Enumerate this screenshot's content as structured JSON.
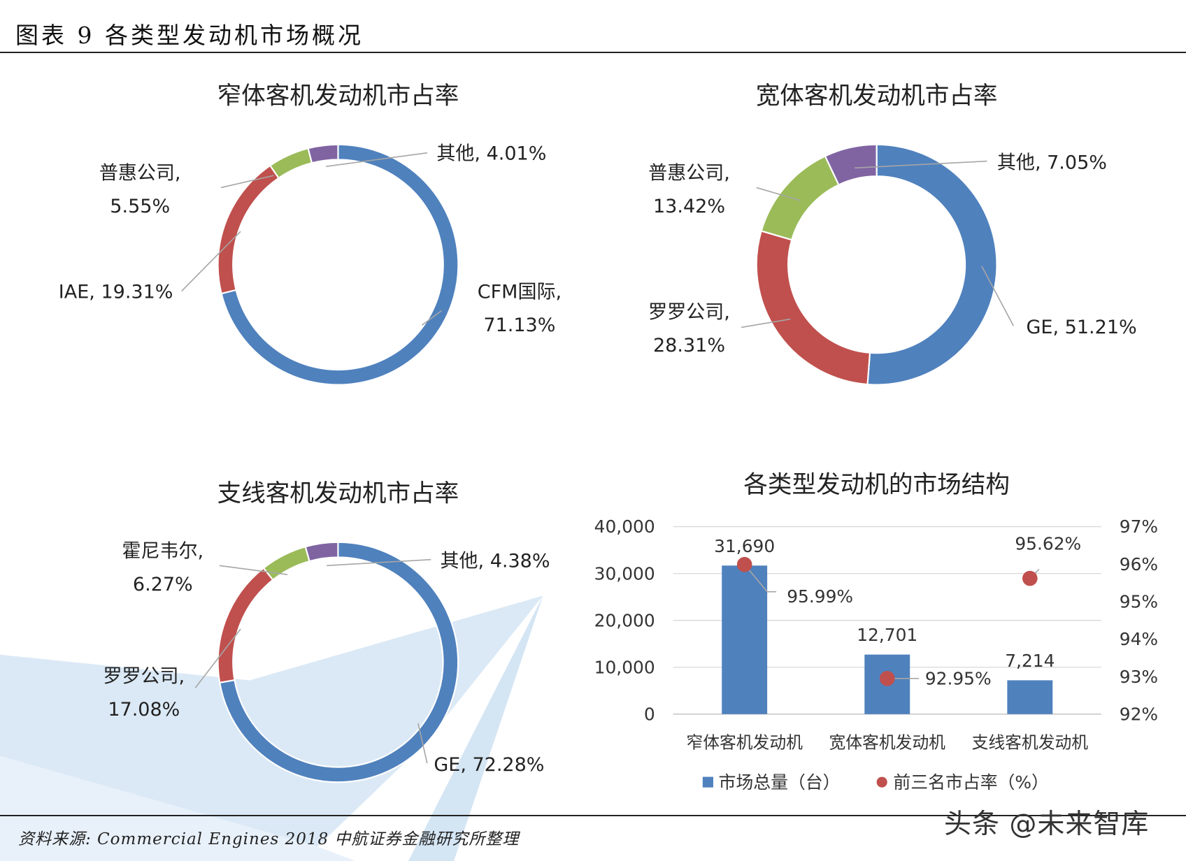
{
  "figure": {
    "title": "图表 9 各类型发动机市场概况",
    "source": "资料来源: Commercial Engines 2018 中航证券金融研究所整理",
    "attribution": "头条 @未来智库"
  },
  "colors": {
    "blue": "#4F81BD",
    "red": "#C0504D",
    "green": "#9BBB59",
    "purple": "#8064A2",
    "marker": "#C0504D",
    "watermark": "#BDD7EE"
  },
  "chart_data": [
    {
      "type": "pie",
      "variant": "doughnut",
      "title": "窄体客机发动机市占率",
      "slices": [
        {
          "label": "CFM国际,",
          "label_line2": "71.13%",
          "value": 71.13,
          "color": "#4F81BD"
        },
        {
          "label": "IAE, 19.31%",
          "label_line2": "",
          "value": 19.31,
          "color": "#C0504D"
        },
        {
          "label": "普惠公司,",
          "label_line2": "5.55%",
          "value": 5.55,
          "color": "#9BBB59"
        },
        {
          "label": "其他, 4.01%",
          "label_line2": "",
          "value": 4.01,
          "color": "#8064A2"
        }
      ]
    },
    {
      "type": "pie",
      "variant": "doughnut",
      "title": "宽体客机发动机市占率",
      "slices": [
        {
          "label": "GE, 51.21%",
          "label_line2": "",
          "value": 51.21,
          "color": "#4F81BD"
        },
        {
          "label": "罗罗公司,",
          "label_line2": "28.31%",
          "value": 28.31,
          "color": "#C0504D"
        },
        {
          "label": "普惠公司,",
          "label_line2": "13.42%",
          "value": 13.42,
          "color": "#9BBB59"
        },
        {
          "label": "其他, 7.05%",
          "label_line2": "",
          "value": 7.05,
          "color": "#8064A2"
        }
      ]
    },
    {
      "type": "pie",
      "variant": "doughnut",
      "title": "支线客机发动机市占率",
      "slices": [
        {
          "label": "GE, 72.28%",
          "label_line2": "",
          "value": 72.28,
          "color": "#4F81BD"
        },
        {
          "label": "罗罗公司,",
          "label_line2": "17.08%",
          "value": 17.08,
          "color": "#C0504D"
        },
        {
          "label": "霍尼韦尔,",
          "label_line2": "6.27%",
          "value": 6.27,
          "color": "#9BBB59"
        },
        {
          "label": "其他, 4.38%",
          "label_line2": "",
          "value": 4.38,
          "color": "#8064A2"
        }
      ]
    },
    {
      "type": "bar",
      "title": "各类型发动机的市场结构",
      "categories": [
        "窄体客机发动机",
        "宽体客机发动机",
        "支线客机发动机"
      ],
      "series": [
        {
          "name": "市场总量（台）",
          "type": "bar",
          "axis": "left",
          "values": [
            31690,
            12701,
            7214
          ],
          "value_labels": [
            "31,690",
            "12,701",
            "7,214"
          ],
          "color": "#4F81BD"
        },
        {
          "name": "前三名市占率（%）",
          "type": "scatter",
          "axis": "right",
          "values": [
            95.99,
            92.95,
            95.62
          ],
          "value_labels": [
            "95.99%",
            "92.95%",
            "95.62%"
          ],
          "color": "#C0504D"
        }
      ],
      "y_left": {
        "ylim": [
          0,
          40000
        ],
        "ticks": [
          0,
          10000,
          20000,
          30000,
          40000
        ],
        "tick_labels": [
          "0",
          "10,000",
          "20,000",
          "30,000",
          "40,000"
        ]
      },
      "y_right": {
        "ylim": [
          92,
          97
        ],
        "ticks": [
          92,
          93,
          94,
          95,
          96,
          97
        ],
        "tick_labels": [
          "92%",
          "93%",
          "94%",
          "95%",
          "96%",
          "97%"
        ]
      },
      "grid": true,
      "legend": "bottom"
    }
  ]
}
